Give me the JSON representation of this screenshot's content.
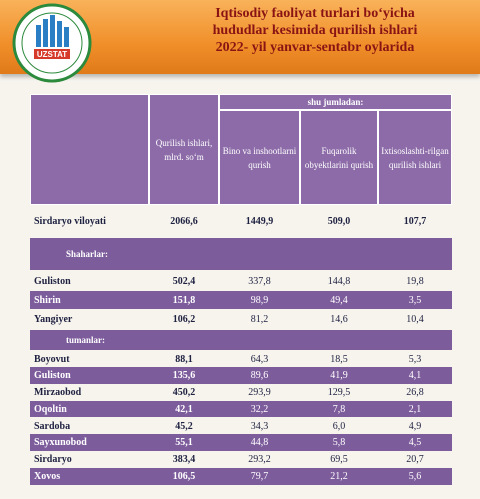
{
  "header": {
    "logo_text": "UZSTAT",
    "title_lines": [
      "Iqtisodiy faoliyat turlari bo‘yicha",
      "hududlar kesimida qurilish ishlari",
      "2022- yil yanvar-sentabr oylarida"
    ]
  },
  "table": {
    "group_header": "shu jumladan:",
    "columns": [
      "Qurilish ishlari, mlrd. so‘m",
      "Bino va inshootlarni qurish",
      "Fuqarolik obyektlarini qurish",
      "Ixtisoslashti-rilgan qurilish ishlari"
    ],
    "rows": [
      {
        "label": "Sirdaryo viloyati",
        "values": [
          "2066,6",
          "1449,9",
          "509,0",
          "107,7"
        ]
      },
      {
        "section": "Shaharlar:"
      },
      {
        "label": "Guliston",
        "values": [
          "502,4",
          "337,8",
          "144,8",
          "19,8"
        ]
      },
      {
        "label": "Shirin",
        "values": [
          "151,8",
          "98,9",
          "49,4",
          "3,5"
        ]
      },
      {
        "label": "Yangiyer",
        "values": [
          "106,2",
          "81,2",
          "14,6",
          "10,4"
        ]
      },
      {
        "section": "tumanlar:"
      },
      {
        "label": "Boyovut",
        "values": [
          "88,1",
          "64,3",
          "18,5",
          "5,3"
        ]
      },
      {
        "label": "Guliston",
        "values": [
          "135,6",
          "89,6",
          "41,9",
          "4,1"
        ]
      },
      {
        "label": "Mirzaobod",
        "values": [
          "450,2",
          "293,9",
          "129,5",
          "26,8"
        ]
      },
      {
        "label": "Oqoltin",
        "values": [
          "42,1",
          "32,2",
          "7,8",
          "2,1"
        ]
      },
      {
        "label": "Sardoba",
        "values": [
          "45,2",
          "34,3",
          "6,0",
          "4,9"
        ]
      },
      {
        "label": "Sayxunobod",
        "values": [
          "55,1",
          "44,8",
          "5,8",
          "4,5"
        ]
      },
      {
        "label": "Sirdaryo",
        "values": [
          "383,4",
          "293,2",
          "69,5",
          "20,7"
        ]
      },
      {
        "label": "Xovos",
        "values": [
          "106,5",
          "79,7",
          "21,2",
          "5,6"
        ]
      }
    ]
  }
}
